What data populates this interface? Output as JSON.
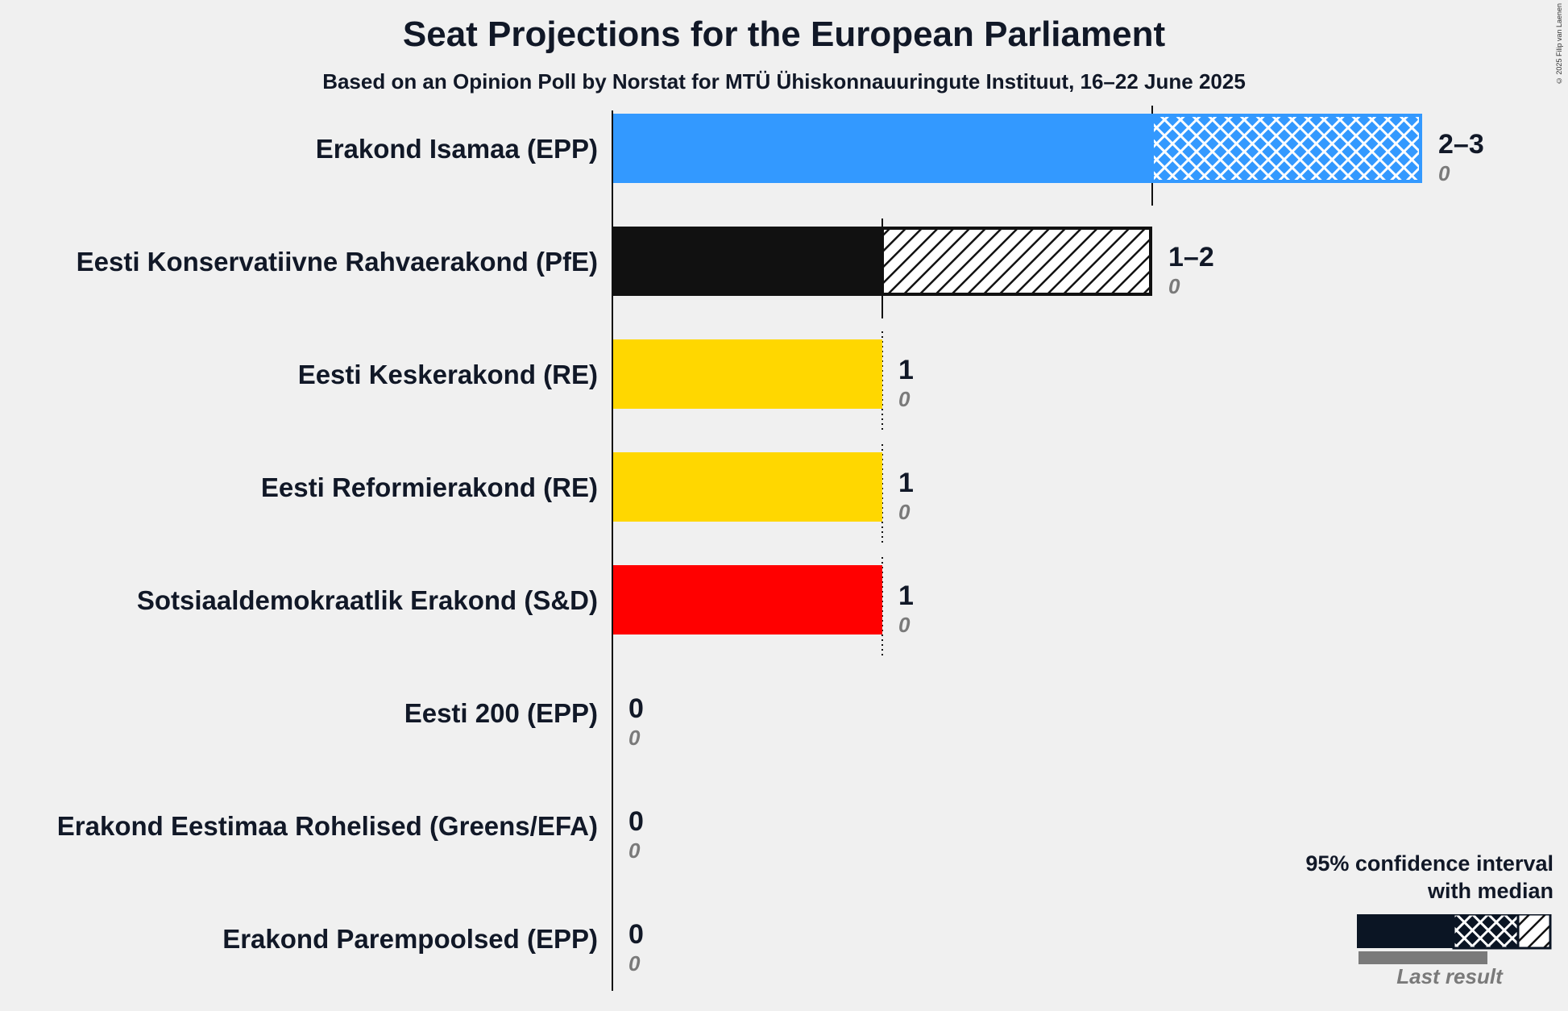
{
  "title": "Seat Projections for the European Parliament",
  "subtitle": "Based on an Opinion Poll by Norstat for MTÜ Ühiskonnauuringute Instituut, 16–22 June 2025",
  "credit": "© 2025 Filip van Laenen",
  "legend": {
    "title_line1": "95% confidence interval",
    "title_line2": "with median",
    "last_result": "Last result"
  },
  "chart_data": {
    "type": "bar",
    "orientation": "horizontal",
    "title": "Seat Projections for the European Parliament",
    "subtitle": "Based on an Opinion Poll by Norstat for MTÜ Ühiskonnauuringute Instituut, 16–22 June 2025",
    "xlim": [
      0,
      3
    ],
    "gridlines_at": [
      1,
      2,
      3
    ],
    "legend_position": "bottom-right",
    "parties": [
      {
        "name": "Erakond Isamaa (EPP)",
        "low": 2,
        "median": 2,
        "high": 3,
        "range_label": "2–3",
        "last_result": 0,
        "last_label": "0",
        "color": "#3399ff"
      },
      {
        "name": "Eesti Konservatiivne Rahvaerakond (PfE)",
        "low": 1,
        "median": 1,
        "high": 2,
        "range_label": "1–2",
        "last_result": 0,
        "last_label": "0",
        "color": "#111111"
      },
      {
        "name": "Eesti Keskerakond (RE)",
        "low": 1,
        "median": 1,
        "high": 1,
        "range_label": "1",
        "last_result": 0,
        "last_label": "0",
        "color": "#ffd700"
      },
      {
        "name": "Eesti Reformierakond (RE)",
        "low": 1,
        "median": 1,
        "high": 1,
        "range_label": "1",
        "last_result": 0,
        "last_label": "0",
        "color": "#ffd700"
      },
      {
        "name": "Sotsiaaldemokraatlik Erakond (S&D)",
        "low": 1,
        "median": 1,
        "high": 1,
        "range_label": "1",
        "last_result": 0,
        "last_label": "0",
        "color": "#ff0000"
      },
      {
        "name": "Eesti 200 (EPP)",
        "low": 0,
        "median": 0,
        "high": 0,
        "range_label": "0",
        "last_result": 0,
        "last_label": "0",
        "color": "#3399ff"
      },
      {
        "name": "Erakond Eestimaa Rohelised (Greens/EFA)",
        "low": 0,
        "median": 0,
        "high": 0,
        "range_label": "0",
        "last_result": 0,
        "last_label": "0",
        "color": "#3cb371"
      },
      {
        "name": "Erakond Parempoolsed (EPP)",
        "low": 0,
        "median": 0,
        "high": 0,
        "range_label": "0",
        "last_result": 0,
        "last_label": "0",
        "color": "#3399ff"
      }
    ]
  }
}
